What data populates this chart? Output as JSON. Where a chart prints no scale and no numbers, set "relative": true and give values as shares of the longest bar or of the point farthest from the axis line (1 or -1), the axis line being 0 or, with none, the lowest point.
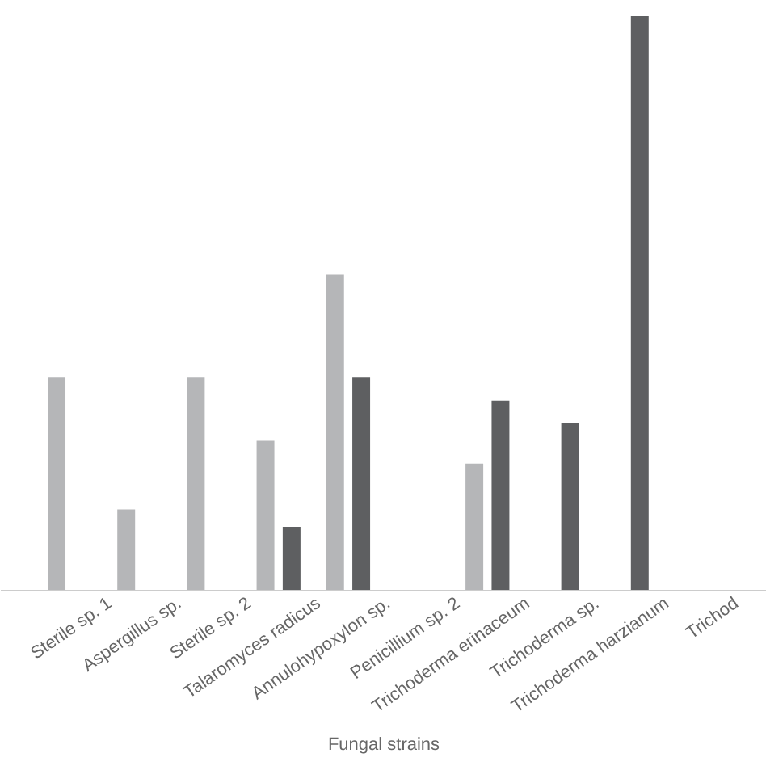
{
  "chart_data": {
    "type": "bar",
    "xlabel": "Fungal strains",
    "relative": true,
    "categories": [
      null,
      "Sterile sp. 1",
      "Aspergillus sp.",
      "Sterile sp. 2",
      "Talaromyces radicus",
      "Annulohypoxylon sp.",
      "Penicillium sp. 2",
      "Trichoderma erinaceum",
      "Trichoderma sp.",
      "Trichoderma harzianum",
      "Trichod"
    ],
    "series": [
      {
        "color": "#5e5f61",
        "values": [
          null,
          null,
          null,
          null,
          0.11,
          0.37,
          null,
          0.33,
          0.29,
          1,
          null
        ]
      },
      {
        "color": "#b5b6b8",
        "values": [
          0.37,
          0.14,
          0.37,
          0.26,
          0.55,
          null,
          0.22,
          null,
          null,
          null,
          null
        ]
      }
    ]
  }
}
